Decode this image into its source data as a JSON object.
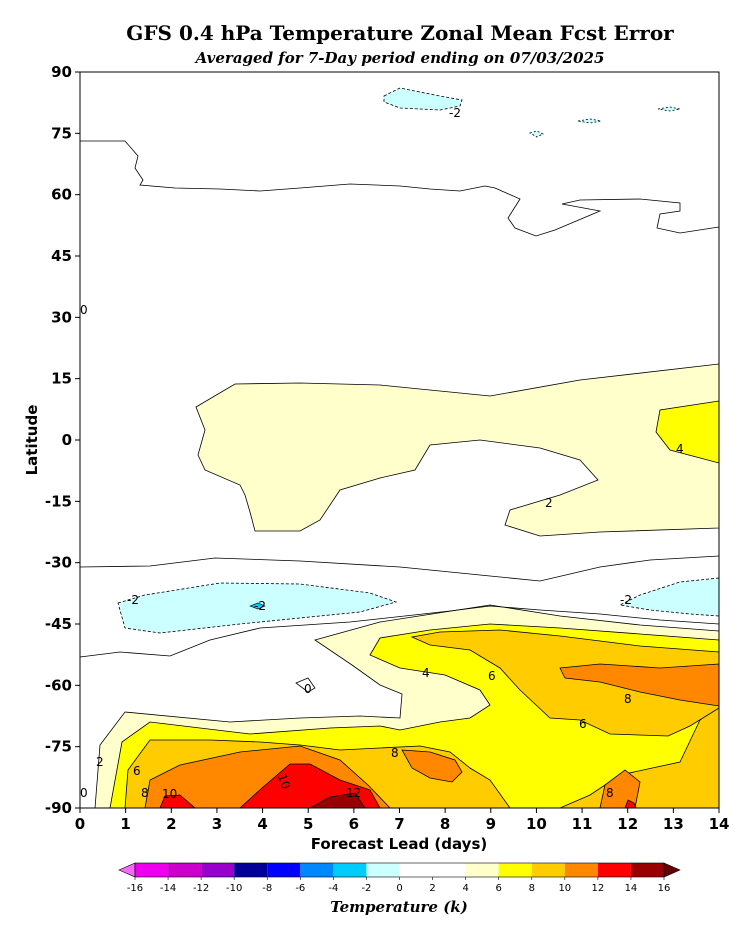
{
  "chart_data": {
    "type": "contour",
    "title": "GFS 0.4 hPa Temperature Zonal Mean Fcst Error",
    "subtitle": "Averaged for 7-Day period ending on 07/03/2025",
    "xlabel": "Forecast Lead (days)",
    "ylabel": "Latitude",
    "xlim": [
      0,
      14
    ],
    "ylim": [
      -90,
      90
    ],
    "x_ticks": [
      "0",
      "1",
      "2",
      "3",
      "4",
      "5",
      "6",
      "7",
      "8",
      "9",
      "10",
      "11",
      "12",
      "13",
      "14"
    ],
    "y_ticks": [
      "90",
      "75",
      "60",
      "45",
      "30",
      "15",
      "0",
      "-15",
      "-30",
      "-45",
      "-60",
      "-75",
      "-90"
    ],
    "colorbar": {
      "label": "Temperature (k)",
      "levels": [
        "-16",
        "-14",
        "-12",
        "-10",
        "-8",
        "-6",
        "-4",
        "-2",
        "0",
        "2",
        "4",
        "6",
        "8",
        "10",
        "12",
        "14",
        "16"
      ],
      "colors": [
        "#ee00ee",
        "#cc00cc",
        "#9900cc",
        "#000099",
        "#0000ff",
        "#0088ff",
        "#00ccff",
        "#ccffff",
        "#ffffff",
        "#ffffff",
        "#ffffcc",
        "#ffff00",
        "#ffcc00",
        "#ff8800",
        "#ff0000",
        "#990000",
        "#a08030"
      ],
      "under_color": "#ff66ff",
      "over_color": "#660000"
    },
    "contour_labels": [
      "-2",
      "-2",
      "-2",
      "2",
      "4",
      "0",
      "-2",
      "2",
      "0",
      "4",
      "6",
      "6",
      "8",
      "2",
      "6",
      "8",
      "10",
      "10",
      "12",
      "8",
      "8",
      "0"
    ],
    "regions": [
      {
        "name": "southern-polar-warm-band",
        "value_range": "2 to 12",
        "lat": [
          -90,
          -45
        ],
        "lead": [
          0,
          14
        ]
      },
      {
        "name": "tropical-warm-plateau",
        "value_range": "2 to 4",
        "lat": [
          -22,
          18
        ],
        "lead": [
          2.5,
          14
        ]
      },
      {
        "name": "southern-cool-patch",
        "value_range": "-2",
        "lat": [
          -46,
          -33
        ],
        "lead": [
          0.8,
          7
        ]
      },
      {
        "name": "northern-cool-patch",
        "value_range": "-2",
        "lat": [
          76,
          87
        ],
        "lead": [
          6.7,
          8.3
        ]
      }
    ]
  }
}
